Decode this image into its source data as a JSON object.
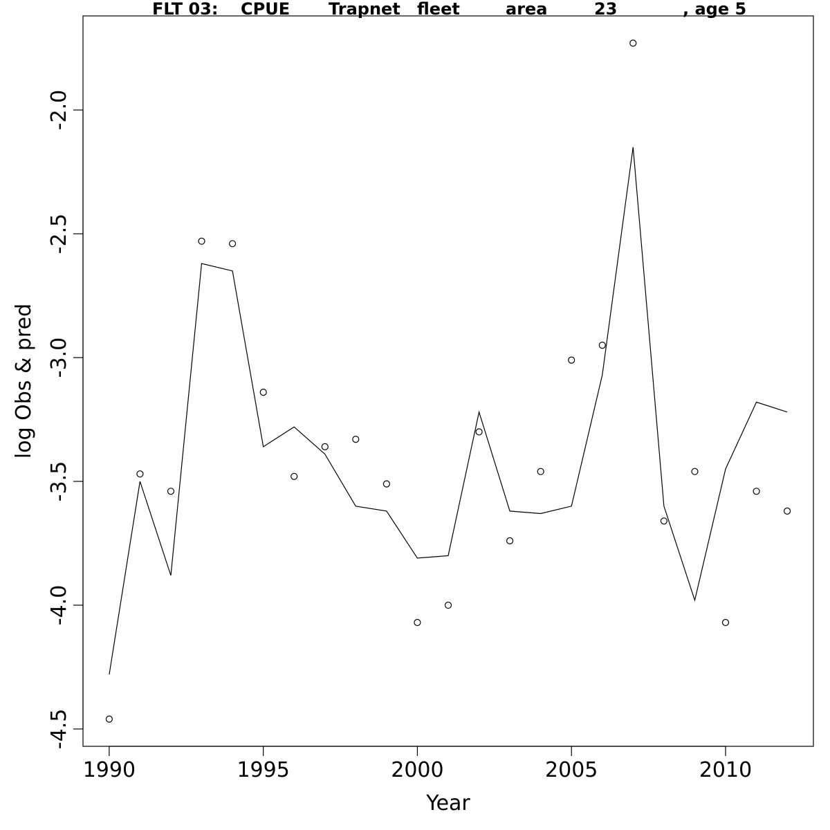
{
  "chart_data": {
    "type": "line",
    "title_parts": [
      "FLT 03:",
      "CPUE",
      "Trapnet",
      "fleet",
      "area",
      "23",
      ", age 5"
    ],
    "xlabel": "Year",
    "ylabel": "log Obs & pred",
    "xlim": [
      1989.15,
      2012.85
    ],
    "ylim": [
      -4.57,
      -1.62
    ],
    "x_ticks": [
      1990,
      1995,
      2000,
      2005,
      2010
    ],
    "y_ticks": [
      -4.5,
      -4.0,
      -3.5,
      -3.0,
      -2.5,
      -2.0
    ],
    "x_tick_labels": [
      "1990",
      "1995",
      "2000",
      "2005",
      "2010"
    ],
    "y_tick_labels": [
      "-4.5",
      "-4.0",
      "-3.5",
      "-3.0",
      "-2.5",
      "-2.0"
    ],
    "grid": false,
    "x": [
      1990,
      1991,
      1992,
      1993,
      1994,
      1995,
      1996,
      1997,
      1998,
      1999,
      2000,
      2001,
      2002,
      2003,
      2004,
      2005,
      2006,
      2007,
      2008,
      2009,
      2010,
      2011,
      2012
    ],
    "series": [
      {
        "style": "line",
        "values": [
          -4.28,
          -3.5,
          -3.88,
          -2.62,
          -2.65,
          -3.36,
          -3.28,
          -3.39,
          -3.6,
          -3.62,
          -3.81,
          -3.8,
          -3.22,
          -3.62,
          -3.63,
          -3.6,
          -3.07,
          -2.15,
          -3.6,
          -3.98,
          -3.45,
          -3.18,
          -3.22
        ]
      },
      {
        "style": "points",
        "values": [
          -4.46,
          -3.47,
          -3.54,
          -2.53,
          -2.54,
          -3.14,
          -3.48,
          -3.36,
          -3.33,
          -3.51,
          -4.07,
          -4.0,
          -3.3,
          -3.74,
          -3.46,
          -3.01,
          -2.95,
          -1.73,
          -3.66,
          -3.46,
          -4.07,
          -3.54,
          -3.62
        ]
      }
    ]
  }
}
